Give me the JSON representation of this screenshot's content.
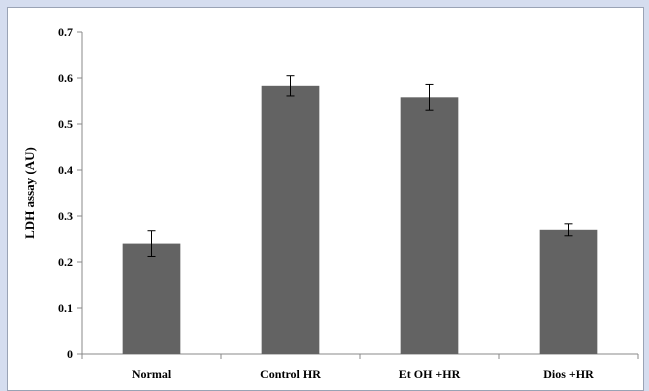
{
  "chart_data": {
    "type": "bar",
    "categories": [
      "Normal",
      "Control HR",
      "Et OH +HR",
      "Dios +HR"
    ],
    "values": [
      0.24,
      0.583,
      0.558,
      0.27
    ],
    "errors": [
      0.028,
      0.022,
      0.028,
      0.013
    ],
    "ylabel": "LDH assay (AU)",
    "xlabel": "",
    "title": "",
    "ylim": [
      0,
      0.7
    ],
    "yticks": [
      "0",
      "0.1",
      "0.2",
      "0.3",
      "0.4",
      "0.5",
      "0.6",
      "0.7"
    ],
    "bar_color": "#636363",
    "grid": false,
    "legend": "none"
  },
  "colors": {
    "page_background": "#d5ddef",
    "panel_background": "#ffffff",
    "axis": "#888888"
  }
}
